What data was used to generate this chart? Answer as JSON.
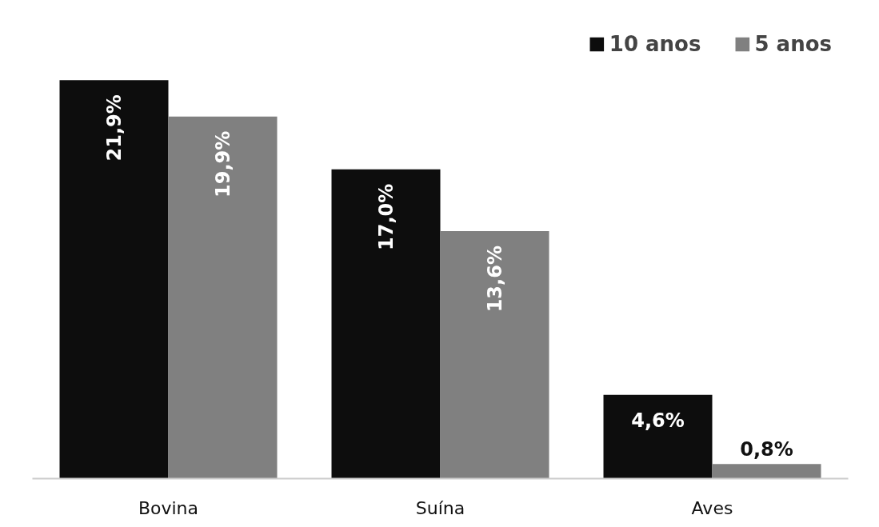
{
  "chart_data": {
    "type": "bar",
    "categories": [
      "Bovina",
      "Suína",
      "Aves"
    ],
    "series": [
      {
        "name": "10 anos",
        "color": "#0d0d0d",
        "values": [
          21.9,
          17.0,
          4.6
        ],
        "value_labels": [
          "21,9%",
          "17,0%",
          "4,6%"
        ]
      },
      {
        "name": "5 anos",
        "color": "#808080",
        "values": [
          19.9,
          13.6,
          0.8
        ],
        "value_labels": [
          "19,9%",
          "13,6%",
          "0,8%"
        ]
      }
    ],
    "tick_labels": "x",
    "legend": "top right"
  }
}
